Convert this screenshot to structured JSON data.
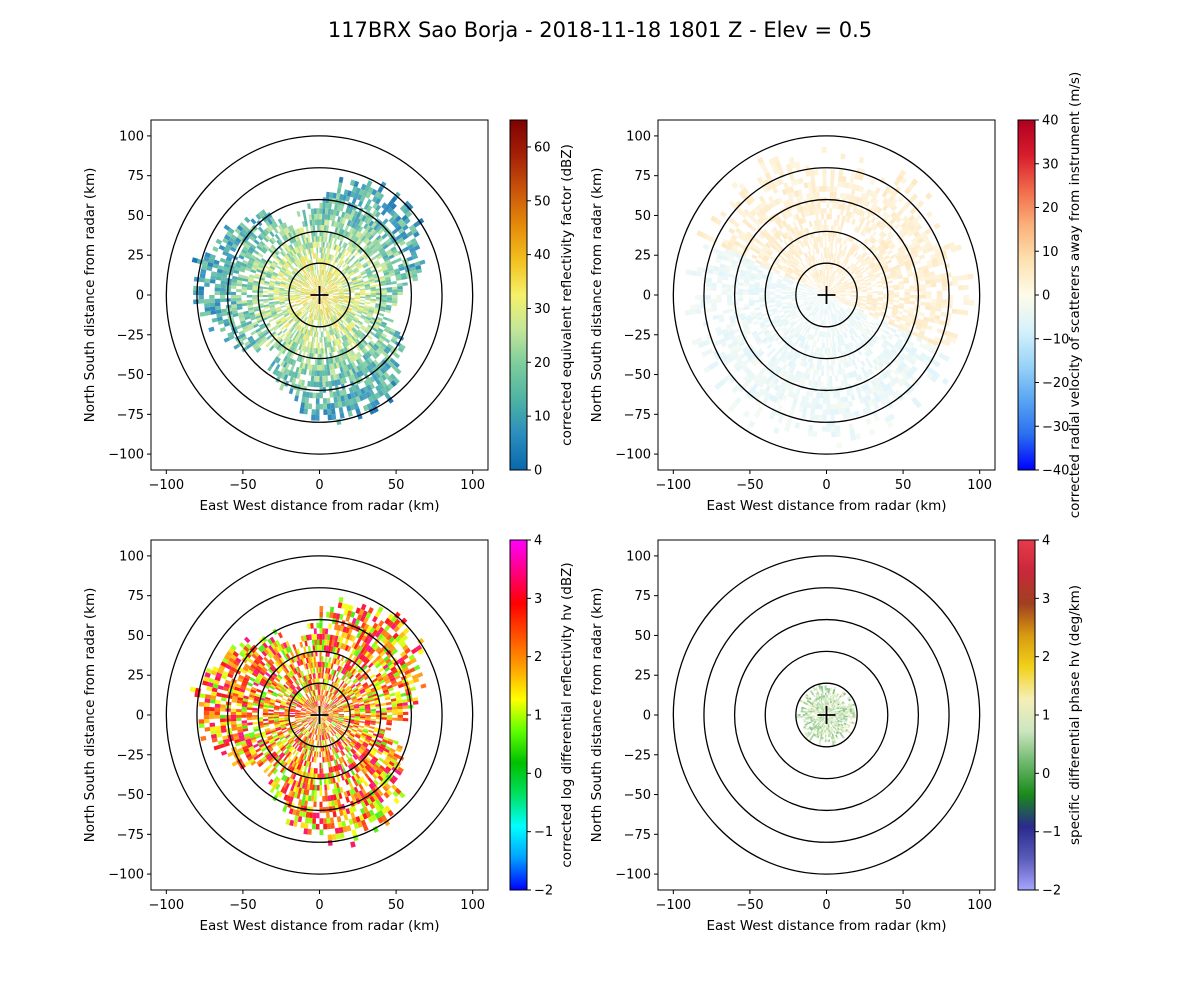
{
  "figure": {
    "title": "117BRX Sao Borja - 2018-11-18 1801 Z -  Elev = 0.5"
  },
  "chart_data": [
    {
      "type": "heatmap",
      "id": "reflectivity",
      "xlabel": "East West distance from radar (km)",
      "ylabel": "North South distance from radar (km)",
      "xlim": [
        -110,
        110
      ],
      "ylim": [
        -110,
        110
      ],
      "xticks": [
        -100,
        -50,
        0,
        50,
        100
      ],
      "yticks": [
        -100,
        -75,
        -50,
        -25,
        0,
        25,
        50,
        75,
        100
      ],
      "range_rings_km": [
        20,
        40,
        60,
        80,
        100
      ],
      "colorbar": {
        "label": "corrected equivalent reflectivity factor (dBZ)",
        "min": 0,
        "max": 65,
        "ticks": [
          0,
          10,
          20,
          30,
          40,
          50,
          60
        ],
        "colors": [
          "#0868ac",
          "#2b8cbe",
          "#4eb3a3",
          "#7bcc9c",
          "#c2e699",
          "#f5f16a",
          "#f2c01d",
          "#e48a0a",
          "#c9540a",
          "#a52008",
          "#7f0000"
        ]
      },
      "echo_extent_km": 72,
      "echo_core_dbz": 35
    },
    {
      "type": "heatmap",
      "id": "velocity",
      "xlabel": "East West distance from radar (km)",
      "ylabel": "North South distance from radar (km)",
      "xlim": [
        -110,
        110
      ],
      "ylim": [
        -110,
        110
      ],
      "xticks": [
        -100,
        -50,
        0,
        50,
        100
      ],
      "yticks": [
        -100,
        -75,
        -50,
        -25,
        0,
        25,
        50,
        75,
        100
      ],
      "range_rings_km": [
        20,
        40,
        60,
        80,
        100
      ],
      "colorbar": {
        "label": "corrected radial velocity of scatterers away from instrument (m/s)",
        "min": -40,
        "max": 40,
        "ticks": [
          -40,
          -30,
          -20,
          -10,
          0,
          10,
          20,
          30,
          40
        ],
        "colors": [
          "#0000ff",
          "#2a6ef0",
          "#59a5f2",
          "#9ad4f7",
          "#d6f2fb",
          "#fffbe8",
          "#fde1b0",
          "#fbb07a",
          "#f06a4a",
          "#d81c2c",
          "#b00020"
        ]
      },
      "echo_extent_km": 95,
      "velocity_range_ms": [
        -8,
        8
      ]
    },
    {
      "type": "heatmap",
      "id": "zdr",
      "xlabel": "East West distance from radar (km)",
      "ylabel": "North South distance from radar (km)",
      "xlim": [
        -110,
        110
      ],
      "ylim": [
        -110,
        110
      ],
      "xticks": [
        -100,
        -50,
        0,
        50,
        100
      ],
      "yticks": [
        -100,
        -75,
        -50,
        -25,
        0,
        25,
        50,
        75,
        100
      ],
      "range_rings_km": [
        20,
        40,
        60,
        80,
        100
      ],
      "colorbar": {
        "label": "corrected log differential reflectivity hv (dBZ)",
        "min": -2,
        "max": 4,
        "ticks": [
          -2,
          -1,
          0,
          1,
          2,
          3,
          4
        ],
        "colors": [
          "#0000ff",
          "#00a0ff",
          "#00ffff",
          "#00e060",
          "#00c000",
          "#60ff00",
          "#ffff00",
          "#ffa000",
          "#ff5000",
          "#ff0000",
          "#ff0080",
          "#ff00ff"
        ]
      },
      "echo_extent_km": 72,
      "zdr_range_db": [
        0.5,
        3.5
      ]
    },
    {
      "type": "heatmap",
      "id": "kdp",
      "xlabel": "East West distance from radar (km)",
      "ylabel": "North South distance from radar (km)",
      "xlim": [
        -110,
        110
      ],
      "ylim": [
        -110,
        110
      ],
      "xticks": [
        -100,
        -50,
        0,
        50,
        100
      ],
      "yticks": [
        -100,
        -75,
        -50,
        -25,
        0,
        25,
        50,
        75,
        100
      ],
      "range_rings_km": [
        20,
        40,
        60,
        80,
        100
      ],
      "colorbar": {
        "label": "specific differential phase hv (deg/km)",
        "min": -2,
        "max": 4,
        "ticks": [
          -2,
          -1,
          0,
          1,
          2,
          3,
          4
        ],
        "colors": [
          "#a6a6ff",
          "#5a5ab8",
          "#2a2a8c",
          "#1a8a1a",
          "#6cb86c",
          "#cde6c0",
          "#f5efb8",
          "#f2d21a",
          "#d89a10",
          "#a04020",
          "#c8283a",
          "#e83a4a"
        ]
      },
      "echo_extent_km": 20,
      "kdp_range": [
        0.2,
        1.2
      ]
    }
  ]
}
